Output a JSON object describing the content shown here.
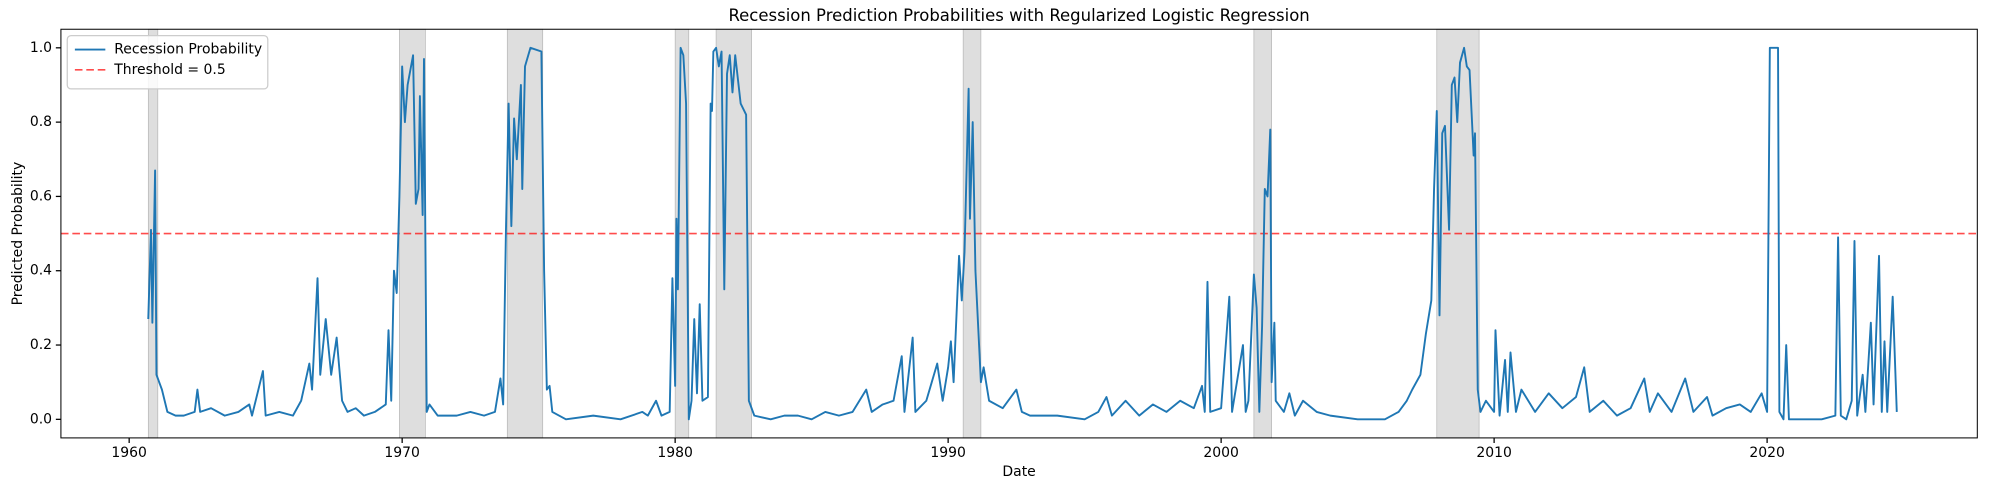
{
  "chart_data": {
    "type": "line",
    "title": "Recession Prediction Probabilities with Regularized Logistic Regression",
    "x_label": "Date",
    "y_label": "Predicted Probability",
    "x": [
      1960.7,
      1960.8,
      1960.85,
      1960.95,
      1961.0,
      1961.2,
      1961.4,
      1961.7,
      1962.0,
      1962.4,
      1962.5,
      1962.6,
      1963.0,
      1963.5,
      1964.0,
      1964.4,
      1964.5,
      1964.9,
      1965.0,
      1965.5,
      1966.0,
      1966.3,
      1966.6,
      1966.7,
      1966.9,
      1967.0,
      1967.2,
      1967.4,
      1967.6,
      1967.8,
      1968.0,
      1968.3,
      1968.6,
      1969.0,
      1969.4,
      1969.5,
      1969.6,
      1969.7,
      1969.8,
      1969.9,
      1970.0,
      1970.1,
      1970.2,
      1970.4,
      1970.5,
      1970.6,
      1970.65,
      1970.75,
      1970.8,
      1970.9,
      1971.0,
      1971.3,
      1972.0,
      1972.5,
      1973.0,
      1973.4,
      1973.6,
      1973.7,
      1973.8,
      1973.9,
      1974.0,
      1974.1,
      1974.2,
      1974.35,
      1974.4,
      1974.5,
      1974.7,
      1975.1,
      1975.2,
      1975.3,
      1975.4,
      1975.5,
      1976.0,
      1977.0,
      1978.0,
      1978.8,
      1979.0,
      1979.3,
      1979.5,
      1979.8,
      1979.9,
      1980.0,
      1980.05,
      1980.1,
      1980.2,
      1980.3,
      1980.4,
      1980.5,
      1980.6,
      1980.7,
      1980.8,
      1980.9,
      1981.0,
      1981.2,
      1981.3,
      1981.35,
      1981.4,
      1981.5,
      1981.6,
      1981.7,
      1981.8,
      1981.9,
      1982.0,
      1982.1,
      1982.2,
      1982.4,
      1982.6,
      1982.7,
      1982.9,
      1983.5,
      1984.0,
      1984.5,
      1985.0,
      1985.5,
      1986.0,
      1986.5,
      1987.0,
      1987.2,
      1987.6,
      1988.0,
      1988.3,
      1988.4,
      1988.7,
      1988.8,
      1989.2,
      1989.4,
      1989.6,
      1989.8,
      1990.0,
      1990.1,
      1990.2,
      1990.4,
      1990.5,
      1990.6,
      1990.75,
      1990.8,
      1990.9,
      1991.0,
      1991.2,
      1991.3,
      1991.5,
      1992.0,
      1992.5,
      1992.7,
      1993.0,
      1994.0,
      1995.0,
      1995.5,
      1995.8,
      1996.0,
      1996.5,
      1997.0,
      1997.5,
      1998.0,
      1998.5,
      1999.0,
      1999.3,
      1999.4,
      1999.5,
      1999.6,
      2000.0,
      2000.3,
      2000.4,
      2000.8,
      2000.9,
      2001.0,
      2001.2,
      2001.3,
      2001.4,
      2001.5,
      2001.6,
      2001.7,
      2001.8,
      2001.85,
      2001.95,
      2002.0,
      2002.3,
      2002.5,
      2002.7,
      2003.0,
      2003.5,
      2004.0,
      2005.0,
      2006.0,
      2006.5,
      2006.8,
      2007.0,
      2007.3,
      2007.5,
      2007.7,
      2007.8,
      2007.9,
      2008.0,
      2008.1,
      2008.2,
      2008.35,
      2008.45,
      2008.55,
      2008.65,
      2008.75,
      2008.9,
      2009.0,
      2009.1,
      2009.25,
      2009.3,
      2009.4,
      2009.5,
      2009.7,
      2010.0,
      2010.05,
      2010.2,
      2010.4,
      2010.5,
      2010.6,
      2010.8,
      2011.0,
      2011.5,
      2012.0,
      2012.5,
      2013.0,
      2013.3,
      2013.5,
      2014.0,
      2014.5,
      2015.0,
      2015.5,
      2015.7,
      2016.0,
      2016.5,
      2017.0,
      2017.3,
      2017.8,
      2018.0,
      2018.5,
      2019.0,
      2019.4,
      2019.8,
      2020.0,
      2020.1,
      2020.4,
      2020.45,
      2020.6,
      2020.7,
      2020.8,
      2021.0,
      2022.0,
      2022.5,
      2022.6,
      2022.7,
      2022.9,
      2023.1,
      2023.2,
      2023.3,
      2023.5,
      2023.6,
      2023.8,
      2023.9,
      2024.1,
      2024.2,
      2024.3,
      2024.4,
      2024.6,
      2024.75
    ],
    "series": [
      {
        "name": "Recession Probability",
        "color": "#1f77b4",
        "values": [
          0.27,
          0.51,
          0.26,
          0.67,
          0.12,
          0.08,
          0.02,
          0.01,
          0.01,
          0.02,
          0.08,
          0.02,
          0.03,
          0.01,
          0.02,
          0.04,
          0.01,
          0.13,
          0.01,
          0.02,
          0.01,
          0.05,
          0.15,
          0.08,
          0.38,
          0.12,
          0.27,
          0.12,
          0.22,
          0.05,
          0.02,
          0.03,
          0.01,
          0.02,
          0.04,
          0.24,
          0.05,
          0.4,
          0.34,
          0.6,
          0.95,
          0.8,
          0.9,
          0.98,
          0.58,
          0.62,
          0.87,
          0.55,
          0.97,
          0.02,
          0.04,
          0.01,
          0.01,
          0.02,
          0.01,
          0.02,
          0.11,
          0.04,
          0.5,
          0.85,
          0.52,
          0.81,
          0.7,
          0.9,
          0.62,
          0.95,
          1.0,
          0.99,
          0.4,
          0.08,
          0.09,
          0.02,
          0.0,
          0.01,
          0.0,
          0.02,
          0.01,
          0.05,
          0.01,
          0.02,
          0.38,
          0.09,
          0.54,
          0.35,
          1.0,
          0.98,
          0.85,
          0.0,
          0.05,
          0.27,
          0.07,
          0.31,
          0.05,
          0.06,
          0.85,
          0.83,
          0.99,
          1.0,
          0.95,
          0.99,
          0.35,
          0.93,
          0.98,
          0.88,
          0.98,
          0.85,
          0.82,
          0.05,
          0.01,
          0.0,
          0.01,
          0.01,
          0.0,
          0.02,
          0.01,
          0.02,
          0.08,
          0.02,
          0.04,
          0.05,
          0.17,
          0.02,
          0.22,
          0.02,
          0.05,
          0.1,
          0.15,
          0.05,
          0.14,
          0.21,
          0.1,
          0.44,
          0.32,
          0.45,
          0.89,
          0.54,
          0.8,
          0.4,
          0.1,
          0.14,
          0.05,
          0.03,
          0.08,
          0.02,
          0.01,
          0.01,
          0.0,
          0.02,
          0.06,
          0.01,
          0.05,
          0.01,
          0.04,
          0.02,
          0.05,
          0.03,
          0.09,
          0.02,
          0.37,
          0.02,
          0.03,
          0.33,
          0.02,
          0.2,
          0.02,
          0.05,
          0.39,
          0.3,
          0.02,
          0.25,
          0.62,
          0.6,
          0.78,
          0.1,
          0.26,
          0.05,
          0.02,
          0.07,
          0.01,
          0.05,
          0.02,
          0.01,
          0.0,
          0.0,
          0.02,
          0.05,
          0.08,
          0.12,
          0.23,
          0.32,
          0.62,
          0.83,
          0.28,
          0.77,
          0.79,
          0.51,
          0.9,
          0.92,
          0.8,
          0.96,
          1.0,
          0.95,
          0.94,
          0.71,
          0.77,
          0.08,
          0.02,
          0.05,
          0.02,
          0.24,
          0.01,
          0.16,
          0.02,
          0.18,
          0.02,
          0.08,
          0.02,
          0.07,
          0.03,
          0.06,
          0.14,
          0.02,
          0.05,
          0.01,
          0.03,
          0.11,
          0.02,
          0.07,
          0.02,
          0.11,
          0.02,
          0.06,
          0.01,
          0.03,
          0.04,
          0.02,
          0.07,
          0.02,
          1.0,
          1.0,
          0.02,
          0.0,
          0.2,
          0.0,
          0.0,
          0.0,
          0.01,
          0.49,
          0.01,
          0.0,
          0.05,
          0.48,
          0.01,
          0.12,
          0.02,
          0.26,
          0.04,
          0.44,
          0.02,
          0.21,
          0.02,
          0.33,
          0.02
        ]
      }
    ],
    "hlines": [
      {
        "name": "Threshold = 0.5",
        "value": 0.5,
        "color": "#ff0000"
      }
    ],
    "shaded_spans": [
      [
        1960.7,
        1961.05
      ],
      [
        1969.9,
        1970.85
      ],
      [
        1973.85,
        1975.15
      ],
      [
        1980.0,
        1980.5
      ],
      [
        1981.5,
        1982.8
      ],
      [
        1990.55,
        1991.2
      ],
      [
        2001.2,
        2001.85
      ],
      [
        2007.9,
        2009.45
      ]
    ],
    "shade_color": "#d3d3d3",
    "xlim": [
      1957.5,
      2027.7
    ],
    "ylim": [
      -0.05,
      1.05
    ],
    "xticks": [
      1960,
      1970,
      1980,
      1990,
      2000,
      2010,
      2020
    ],
    "yticks": [
      {
        "value": 0,
        "label": "0.0"
      },
      0.2,
      0.4,
      0.6,
      0.8,
      {
        "value": 1,
        "label": "1.0"
      }
    ],
    "legend": "upper left"
  }
}
